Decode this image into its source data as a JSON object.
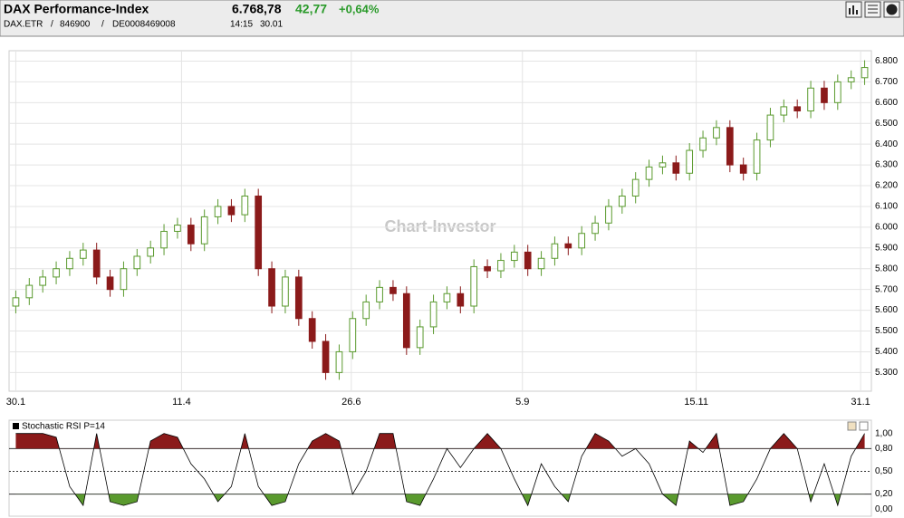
{
  "header": {
    "title": "DAX Performance-Index",
    "last": "6.768,78",
    "change": "42,77",
    "change_pct": "+0,64%",
    "symbol": "DAX.ETR",
    "wkn": "846900",
    "isin": "DE0008469008",
    "time": "14:15",
    "date": "30.01"
  },
  "watermark": "Chart-Investor",
  "chart_data": [
    {
      "type": "candlestick",
      "open": [
        5620,
        5660,
        5720,
        5760,
        5800,
        5850,
        5890,
        5760,
        5700,
        5800,
        5860,
        5900,
        5980,
        6010,
        5920,
        6050,
        6100,
        6060,
        6150,
        5800,
        5620,
        5760,
        5560,
        5450,
        5300,
        5400,
        5560,
        5640,
        5710,
        5680,
        5420,
        5520,
        5640,
        5680,
        5620,
        5810,
        5790,
        5840,
        5880,
        5800,
        5850,
        5920,
        5900,
        5970,
        6020,
        6100,
        6150,
        6230,
        6290,
        6310,
        6260,
        6370,
        6430,
        6480,
        6300,
        6260,
        6420,
        6540,
        6580,
        6560,
        6670,
        6600,
        6700,
        6720
      ],
      "high": [
        5695,
        5755,
        5795,
        5835,
        5885,
        5925,
        5925,
        5795,
        5835,
        5895,
        5935,
        6015,
        6045,
        6045,
        6085,
        6135,
        6135,
        6185,
        6185,
        5835,
        5795,
        5795,
        5595,
        5485,
        5435,
        5595,
        5675,
        5745,
        5745,
        5715,
        5555,
        5675,
        5715,
        5715,
        5845,
        5845,
        5875,
        5915,
        5915,
        5885,
        5955,
        5955,
        6005,
        6055,
        6135,
        6185,
        6265,
        6325,
        6345,
        6345,
        6405,
        6465,
        6515,
        6515,
        6335,
        6455,
        6575,
        6615,
        6615,
        6705,
        6705,
        6735,
        6755,
        6804
      ],
      "low": [
        5585,
        5625,
        5685,
        5725,
        5765,
        5815,
        5725,
        5665,
        5665,
        5765,
        5825,
        5865,
        5945,
        5885,
        5885,
        6015,
        6025,
        6025,
        5765,
        5585,
        5585,
        5525,
        5415,
        5265,
        5265,
        5365,
        5525,
        5605,
        5645,
        5385,
        5385,
        5485,
        5605,
        5585,
        5585,
        5755,
        5755,
        5805,
        5765,
        5765,
        5815,
        5865,
        5865,
        5935,
        5985,
        6065,
        6115,
        6195,
        6255,
        6225,
        6225,
        6335,
        6395,
        6265,
        6225,
        6225,
        6385,
        6505,
        6525,
        6525,
        6565,
        6565,
        6665,
        6685
      ],
      "close": [
        5660,
        5720,
        5760,
        5800,
        5850,
        5890,
        5760,
        5700,
        5800,
        5860,
        5900,
        5980,
        6010,
        5920,
        6050,
        6100,
        6060,
        6150,
        5800,
        5620,
        5760,
        5560,
        5450,
        5300,
        5400,
        5560,
        5640,
        5710,
        5680,
        5420,
        5520,
        5640,
        5680,
        5620,
        5810,
        5790,
        5840,
        5880,
        5800,
        5850,
        5920,
        5900,
        5970,
        6020,
        6100,
        6150,
        6230,
        6290,
        6310,
        6260,
        6370,
        6430,
        6480,
        6300,
        6260,
        6420,
        6540,
        6580,
        6560,
        6670,
        6600,
        6700,
        6720,
        6769
      ],
      "up_color": "#5a9a2e",
      "down_color": "#8b1a1a",
      "xlim": [
        -0.5,
        63.5
      ],
      "xticks": [
        {
          "value": 0,
          "label": "30.1"
        },
        {
          "value": 12.3,
          "label": "11.4"
        },
        {
          "value": 24.9,
          "label": "26.6"
        },
        {
          "value": 37.6,
          "label": "5.9"
        },
        {
          "value": 50.5,
          "label": "15.11"
        },
        {
          "value": 62.7,
          "label": "31.1"
        }
      ],
      "ylim": [
        5210,
        6850
      ],
      "yticks": [
        {
          "value": 5300,
          "label": "5.300"
        },
        {
          "value": 5400,
          "label": "5.400"
        },
        {
          "value": 5500,
          "label": "5.500"
        },
        {
          "value": 5600,
          "label": "5.600"
        },
        {
          "value": 5700,
          "label": "5.700"
        },
        {
          "value": 5800,
          "label": "5.800"
        },
        {
          "value": 5900,
          "label": "5.900"
        },
        {
          "value": 6000,
          "label": "6.000"
        },
        {
          "value": 6100,
          "label": "6.100"
        },
        {
          "value": 6200,
          "label": "6.200"
        },
        {
          "value": 6300,
          "label": "6.300"
        },
        {
          "value": 6400,
          "label": "6.400"
        },
        {
          "value": 6500,
          "label": "6.500"
        },
        {
          "value": 6600,
          "label": "6.600"
        },
        {
          "value": 6700,
          "label": "6.700"
        },
        {
          "value": 6800,
          "label": "6.800"
        }
      ],
      "grid": true
    },
    {
      "type": "line",
      "title": "Stochastic RSI P=14",
      "values": [
        1,
        1,
        1,
        0.95,
        0.3,
        0.05,
        1,
        0.1,
        0.05,
        0.1,
        0.9,
        1,
        0.95,
        0.6,
        0.4,
        0.1,
        0.3,
        1,
        0.3,
        0.05,
        0.1,
        0.6,
        0.9,
        1,
        0.9,
        0.2,
        0.5,
        1,
        1,
        0.1,
        0.05,
        0.4,
        0.8,
        0.55,
        0.8,
        1,
        0.8,
        0.4,
        0.05,
        0.6,
        0.3,
        0.1,
        0.7,
        1,
        0.9,
        0.7,
        0.8,
        0.6,
        0.2,
        0.05,
        0.9,
        0.75,
        1,
        0.05,
        0.1,
        0.4,
        0.8,
        1,
        0.8,
        0.1,
        0.6,
        0.05,
        0.7,
        1
      ],
      "color": "#000000",
      "overbought_color": "#8b1a1a",
      "oversold_color": "#5a9a2e",
      "xlim": [
        -0.5,
        63.5
      ],
      "ylim": [
        -0.02,
        1.02
      ],
      "yticks": [
        {
          "value": 0,
          "label": "0,00"
        },
        {
          "value": 0.2,
          "label": "0,20"
        },
        {
          "value": 0.5,
          "label": "0,50"
        },
        {
          "value": 0.8,
          "label": "0,80"
        },
        {
          "value": 1,
          "label": "1,00"
        }
      ]
    }
  ]
}
